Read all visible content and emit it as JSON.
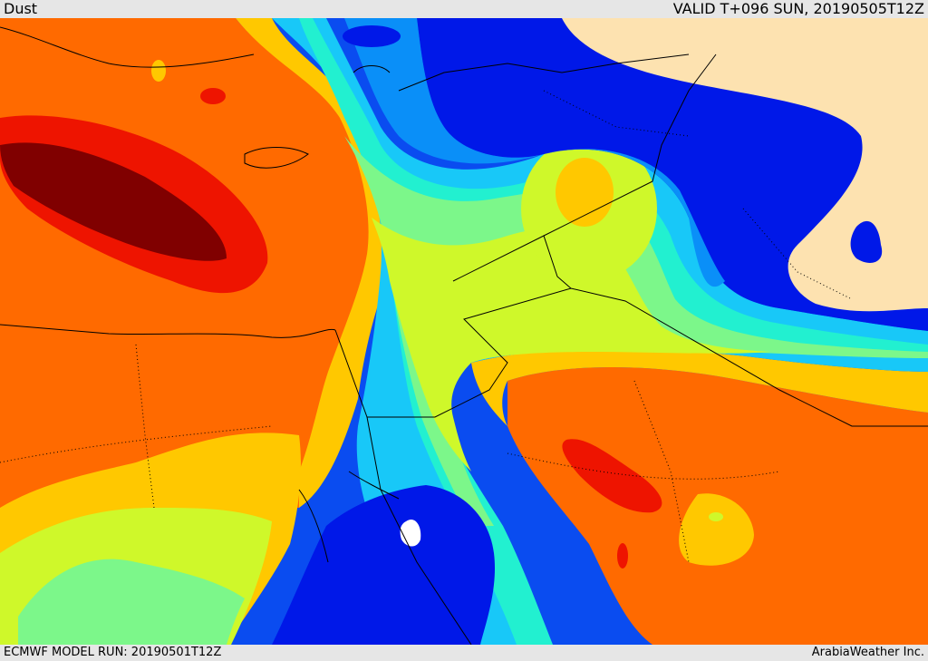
{
  "header": {
    "product": "Dust",
    "valid_label": "VALID T+096 SUN, 20190505T12Z"
  },
  "footer": {
    "model_run": "ECMWF MODEL RUN: 20190501T12Z",
    "credit": "ArabiaWeather Inc."
  },
  "palette": {
    "land": "#fde2b0",
    "blue_deep": "#0018e8",
    "blue": "#0a4cf0",
    "azure": "#0a8ff8",
    "sky": "#18c8f8",
    "aqua": "#22f0d0",
    "mint": "#7cf78a",
    "lime": "#cff82a",
    "yellow": "#ffc800",
    "orange": "#ff6a00",
    "red": "#ee1400",
    "maroon": "#800000",
    "border": "#000000"
  }
}
